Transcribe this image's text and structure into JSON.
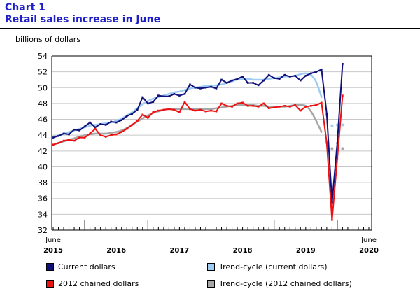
{
  "chart_number": "Chart 1",
  "chart_title": "Retail sales increase in June",
  "colors": {
    "current": "#10107a",
    "chained": "#ee1111",
    "trend_current": "#9ecbf2",
    "trend_chained": "#a6a6a6",
    "title": "#1f1fc8"
  },
  "chart_data": {
    "type": "line",
    "title": "Retail sales increase in June",
    "ylabel": "billions of dollars",
    "ylim": [
      32,
      54
    ],
    "yticks": [
      32,
      34,
      36,
      38,
      40,
      42,
      44,
      46,
      48,
      50,
      52,
      54
    ],
    "x_start": "2015-06",
    "x_end": "2020-06",
    "x_labels": [
      {
        "month_index": 0,
        "top": "June",
        "bottom": "2015"
      },
      {
        "month_index": 12,
        "top": "",
        "bottom": "2016"
      },
      {
        "month_index": 24,
        "top": "",
        "bottom": "2017"
      },
      {
        "month_index": 36,
        "top": "",
        "bottom": "2018"
      },
      {
        "month_index": 48,
        "top": "",
        "bottom": "2019"
      },
      {
        "month_index": 60,
        "top": "June",
        "bottom": "2020"
      }
    ],
    "grid": true,
    "legend_position": "bottom",
    "series": [
      {
        "name": "Current dollars",
        "style": "line-markers",
        "values": [
          43.7,
          43.9,
          44.2,
          44.1,
          44.7,
          44.6,
          45.1,
          45.6,
          45.0,
          45.4,
          45.3,
          45.7,
          45.6,
          45.9,
          46.4,
          46.7,
          47.2,
          48.8,
          48.0,
          48.2,
          49.0,
          48.9,
          48.9,
          49.2,
          49.0,
          49.2,
          50.4,
          50.0,
          49.9,
          50.0,
          50.1,
          49.9,
          51.0,
          50.6,
          50.9,
          51.1,
          51.4,
          50.6,
          50.6,
          50.3,
          50.9,
          51.6,
          51.2,
          51.1,
          51.6,
          51.4,
          51.5,
          50.9,
          51.5,
          51.8,
          52.0,
          52.3,
          46.7,
          35.5,
          43.0,
          53.0
        ]
      },
      {
        "name": "2012 chained dollars",
        "style": "line-markers",
        "values": [
          42.8,
          43.0,
          43.3,
          43.4,
          43.3,
          43.7,
          43.7,
          44.2,
          44.8,
          44.0,
          43.8,
          44.0,
          44.1,
          44.4,
          44.8,
          45.3,
          45.8,
          46.6,
          46.2,
          46.9,
          47.1,
          47.2,
          47.3,
          47.2,
          46.9,
          48.2,
          47.3,
          47.1,
          47.2,
          47.0,
          47.1,
          47.0,
          48.0,
          47.7,
          47.6,
          48.0,
          48.1,
          47.7,
          47.7,
          47.6,
          48.0,
          47.4,
          47.5,
          47.6,
          47.7,
          47.6,
          47.8,
          47.1,
          47.6,
          47.7,
          47.8,
          48.1,
          43.0,
          33.3,
          41.0,
          49.0
        ]
      },
      {
        "name": "Trend-cycle (current dollars)",
        "style": "smooth-then-dots",
        "values": [
          43.8,
          44.0,
          44.2,
          44.4,
          44.6,
          44.8,
          45.0,
          45.2,
          45.3,
          45.4,
          45.5,
          45.6,
          45.8,
          46.1,
          46.5,
          46.9,
          47.4,
          47.9,
          48.3,
          48.6,
          48.8,
          49.0,
          49.2,
          49.4,
          49.5,
          49.7,
          49.9,
          50.0,
          50.1,
          50.2,
          50.2,
          50.3,
          50.4,
          50.6,
          50.8,
          51.0,
          51.1,
          51.1,
          51.0,
          51.0,
          51.0,
          51.1,
          51.2,
          51.3,
          51.4,
          51.4,
          51.5,
          51.7,
          51.8,
          51.6,
          50.7,
          48.8,
          46.5,
          45.2,
          45.3,
          45.3
        ],
        "dotted_from_index": 52
      },
      {
        "name": "Trend-cycle (2012 chained dollars)",
        "style": "smooth-then-dots",
        "values": [
          42.8,
          43.0,
          43.2,
          43.4,
          43.6,
          43.8,
          44.0,
          44.1,
          44.2,
          44.2,
          44.2,
          44.3,
          44.4,
          44.6,
          44.9,
          45.3,
          45.7,
          46.1,
          46.5,
          46.8,
          47.0,
          47.2,
          47.3,
          47.3,
          47.3,
          47.3,
          47.3,
          47.3,
          47.3,
          47.3,
          47.3,
          47.4,
          47.5,
          47.6,
          47.7,
          47.8,
          47.8,
          47.8,
          47.8,
          47.7,
          47.7,
          47.6,
          47.6,
          47.6,
          47.6,
          47.7,
          47.8,
          47.8,
          47.7,
          47.0,
          45.8,
          44.4,
          43.2,
          42.3,
          42.3,
          42.3
        ],
        "dotted_from_index": 52
      }
    ]
  },
  "legend": [
    {
      "label": "Current dollars",
      "color_key": "current"
    },
    {
      "label": "Trend-cycle (current dollars)",
      "color_key": "trend_current"
    },
    {
      "label": "2012 chained dollars",
      "color_key": "chained"
    },
    {
      "label": "Trend-cycle (2012 chained dollars)",
      "color_key": "trend_chained"
    }
  ]
}
